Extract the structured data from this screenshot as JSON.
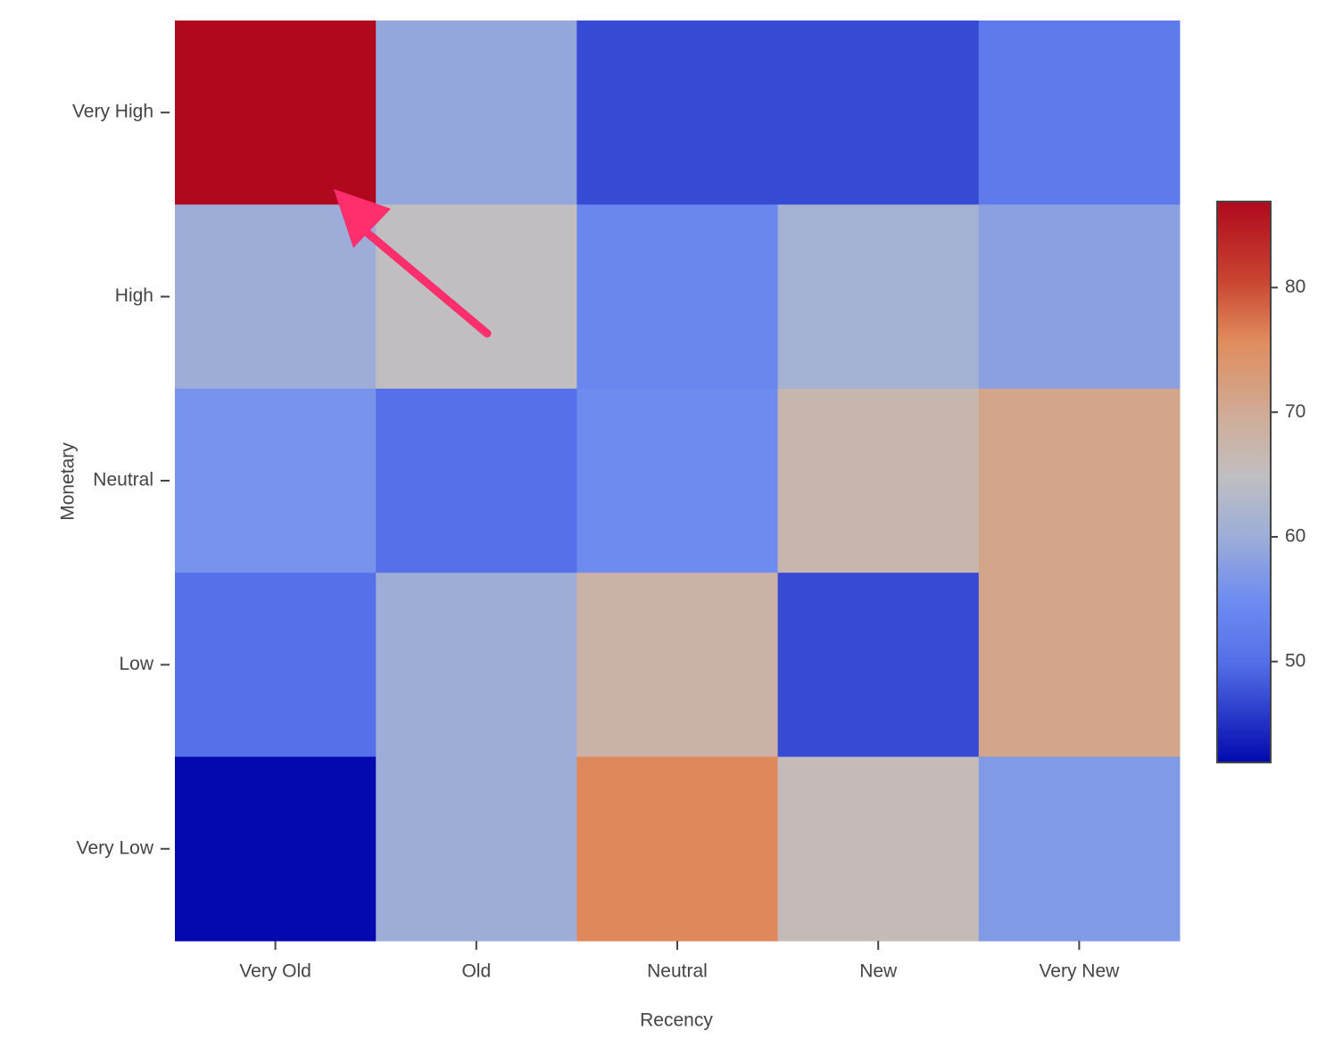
{
  "chart_data": {
    "type": "heatmap",
    "x_label": "Recency",
    "y_label": "Monetary",
    "x_categories": [
      "Very Old",
      "Old",
      "Neutral",
      "New",
      "Very New"
    ],
    "y_categories": [
      "Very High",
      "High",
      "Neutral",
      "Low",
      "Very Low"
    ],
    "z": [
      [
        86.9,
        59,
        47,
        47,
        52
      ],
      [
        60,
        65,
        54,
        61,
        58
      ],
      [
        56,
        50,
        55,
        67,
        71
      ],
      [
        50,
        60,
        68,
        47,
        71
      ],
      [
        41.9,
        60,
        76,
        66,
        57
      ]
    ],
    "colormap": "coolwarm",
    "zlim": [
      41.9,
      86.9
    ],
    "zticks": [
      50,
      60,
      70,
      80
    ]
  }
}
